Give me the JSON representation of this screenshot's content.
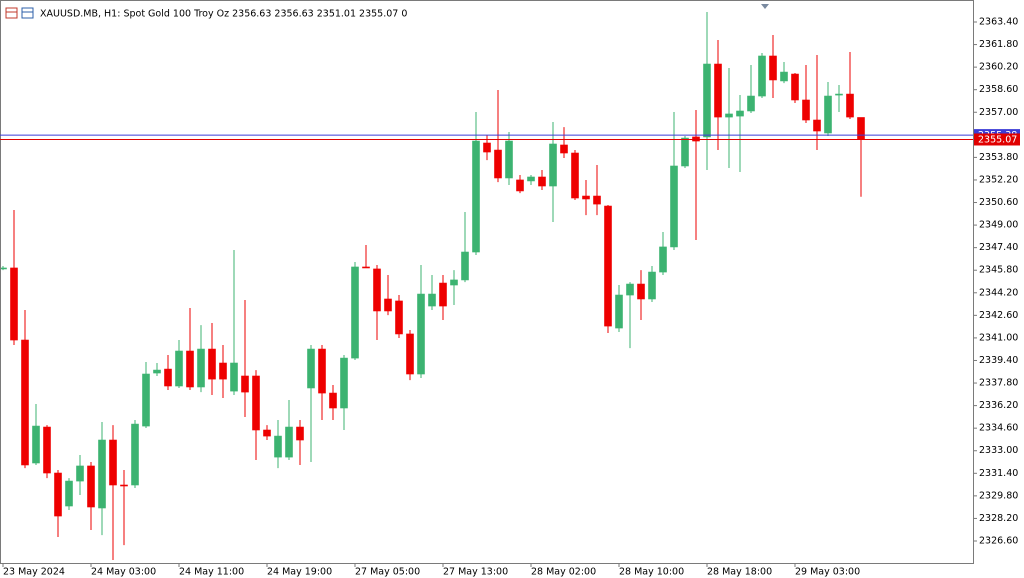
{
  "chart_data": {
    "type": "candlestick",
    "title": "XAUUSD.MB, H1:  Spot Gold 100 Troy Oz  2356.63 2356.63 2351.01 2355.07  0",
    "categories": [
      "23 May 2024",
      null,
      null,
      null,
      null,
      null,
      null,
      null,
      "24 May 03:00",
      null,
      null,
      null,
      null,
      null,
      null,
      null,
      "24 May 11:00",
      null,
      null,
      null,
      null,
      null,
      null,
      null,
      "24 May 19:00",
      null,
      null,
      null,
      null,
      null,
      null,
      null,
      "27 May 05:00",
      null,
      null,
      null,
      null,
      null,
      null,
      null,
      "27 May 13:00",
      null,
      null,
      null,
      null,
      null,
      null,
      null,
      "28 May 02:00",
      null,
      null,
      null,
      null,
      null,
      null,
      null,
      "28 May 10:00",
      null,
      null,
      null,
      null,
      null,
      null,
      null,
      "28 May 18:00",
      null,
      null,
      null,
      null,
      null,
      null,
      null,
      "29 May 03:00",
      null,
      null,
      null,
      null,
      null,
      null
    ],
    "open": [
      2345.96,
      2345.96,
      2340.85,
      2332.13,
      2334.68,
      2331.42,
      2329.08,
      2330.85,
      2331.92,
      2328.94,
      2333.76,
      2330.57,
      2330.57,
      2334.75,
      2338.51,
      2338.79,
      2337.59,
      2340.07,
      2337.52,
      2340.21,
      2339.22,
      2337.23,
      2338.3,
      2338.3,
      2334.47,
      2332.55,
      2332.55,
      2334.68,
      2337.45,
      2340.21,
      2337.09,
      2336.03,
      2339.57,
      2346.03,
      2345.89,
      2343.76,
      2343.62,
      2341.28,
      2338.44,
      2343.26,
      2344.89,
      2344.75,
      2345.11,
      2347.09,
      2354.82,
      2354.32,
      2352.34,
      2352.2,
      2352.13,
      2352.41,
      2351.77,
      2354.68,
      2354.11,
      2351.06,
      2351.06,
      2350.35,
      2341.7,
      2344.04,
      2344.82,
      2343.76,
      2345.67,
      2347.45,
      2353.19,
      2355.25,
      2355.25,
      2360.42,
      2356.66,
      2356.73,
      2357.09,
      2358.15,
      2360.99,
      2359.22,
      2359.71,
      2357.87,
      2356.45,
      2355.53,
      2358.22,
      2358.29,
      2356.63
    ],
    "high": [
      2346.1,
      2350.07,
      2342.98,
      2336.31,
      2334.82,
      2331.63,
      2331.06,
      2332.7,
      2332.2,
      2335.04,
      2334.82,
      2331.63,
      2335.18,
      2339.29,
      2339.22,
      2339.79,
      2340.85,
      2343.12,
      2341.91,
      2342.06,
      2340.5,
      2347.23,
      2343.69,
      2338.72,
      2334.82,
      2335.18,
      2336.6,
      2335.18,
      2340.5,
      2340.5,
      2337.66,
      2339.79,
      2346.38,
      2347.59,
      2346.17,
      2345.46,
      2344.04,
      2341.56,
      2346.17,
      2345.46,
      2345.46,
      2345.81,
      2349.93,
      2357.02,
      2355.39,
      2358.58,
      2355.6,
      2352.55,
      2352.55,
      2352.91,
      2356.31,
      2355.95,
      2354.32,
      2352.2,
      2353.26,
      2350.42,
      2344.75,
      2344.96,
      2345.81,
      2346.1,
      2348.51,
      2357.02,
      2355.32,
      2357.16,
      2364.11,
      2362.12,
      2360.14,
      2358.22,
      2360.35,
      2361.2,
      2362.48,
      2360.56,
      2359.78,
      2360.35,
      2361.06,
      2359.15,
      2358.93,
      2361.27,
      2356.63
    ],
    "low": [
      2345.81,
      2340.5,
      2331.77,
      2331.99,
      2331.06,
      2326.88,
      2328.8,
      2329.86,
      2327.38,
      2327.02,
      2325.25,
      2326.31,
      2330.36,
      2334.61,
      2338.3,
      2337.31,
      2337.45,
      2337.31,
      2337.16,
      2336.95,
      2336.74,
      2336.95,
      2335.39,
      2332.34,
      2333.76,
      2331.77,
      2332.34,
      2331.99,
      2332.2,
      2335.18,
      2335.18,
      2334.47,
      2339.43,
      2345.96,
      2340.85,
      2342.62,
      2340.99,
      2338.01,
      2338.16,
      2342.98,
      2342.27,
      2343.33,
      2344.96,
      2346.88,
      2353.61,
      2352.05,
      2351.84,
      2351.27,
      2351.84,
      2351.49,
      2349.22,
      2353.76,
      2350.78,
      2349.71,
      2349.71,
      2341.35,
      2341.42,
      2340.28,
      2342.27,
      2343.55,
      2345.46,
      2347.23,
      2353.05,
      2347.94,
      2352.91,
      2354.32,
      2353.05,
      2352.76,
      2356.95,
      2358.01,
      2358.01,
      2359.07,
      2357.66,
      2356.24,
      2354.32,
      2355.32,
      2357.02,
      2356.52,
      2351.01
    ],
    "close": [
      2345.96,
      2340.85,
      2331.99,
      2334.75,
      2331.42,
      2328.37,
      2330.85,
      2331.92,
      2329.01,
      2333.76,
      2330.57,
      2330.5,
      2334.89,
      2338.44,
      2338.72,
      2337.59,
      2340.07,
      2337.52,
      2340.21,
      2338.08,
      2338.08,
      2339.22,
      2337.16,
      2334.47,
      2334.04,
      2334.04,
      2334.68,
      2333.76,
      2340.21,
      2337.09,
      2336.03,
      2339.57,
      2346.03,
      2345.96,
      2342.91,
      2342.91,
      2341.28,
      2338.44,
      2344.11,
      2344.11,
      2343.26,
      2345.11,
      2347.09,
      2354.96,
      2354.18,
      2352.34,
      2354.96,
      2351.42,
      2352.41,
      2351.77,
      2354.75,
      2354.11,
      2350.92,
      2350.85,
      2350.49,
      2341.84,
      2344.04,
      2344.82,
      2343.76,
      2345.67,
      2347.45,
      2353.19,
      2355.17,
      2354.96,
      2360.42,
      2356.66,
      2356.88,
      2357.09,
      2358.15,
      2360.99,
      2359.29,
      2359.85,
      2357.87,
      2356.45,
      2355.67,
      2358.15,
      2358.29,
      2356.66,
      2355.07
    ],
    "up_color": "#3cb371",
    "down_color": "#ee0000",
    "ylim": [
      2325.04,
      2364.96
    ],
    "yticks": [
      {
        "value": 2326.6,
        "label": "2326.60"
      },
      {
        "value": 2328.2,
        "label": "2328.20"
      },
      {
        "value": 2329.8,
        "label": "2329.80"
      },
      {
        "value": 2331.4,
        "label": "2331.40"
      },
      {
        "value": 2333.0,
        "label": "2333.00"
      },
      {
        "value": 2334.6,
        "label": "2334.60"
      },
      {
        "value": 2336.2,
        "label": "2336.20"
      },
      {
        "value": 2337.8,
        "label": "2337.80"
      },
      {
        "value": 2339.4,
        "label": "2339.40"
      },
      {
        "value": 2341.0,
        "label": "2341.00"
      },
      {
        "value": 2342.6,
        "label": "2342.60"
      },
      {
        "value": 2344.2,
        "label": "2344.20"
      },
      {
        "value": 2345.8,
        "label": "2345.80"
      },
      {
        "value": 2347.4,
        "label": "2347.40"
      },
      {
        "value": 2349.0,
        "label": "2349.00"
      },
      {
        "value": 2350.6,
        "label": "2350.60"
      },
      {
        "value": 2352.2,
        "label": "2352.20"
      },
      {
        "value": 2353.8,
        "label": "2353.80"
      },
      {
        "value": 2357.0,
        "label": "2357.00"
      },
      {
        "value": 2358.6,
        "label": "2358.60"
      },
      {
        "value": 2360.2,
        "label": "2360.20"
      },
      {
        "value": 2361.8,
        "label": "2361.80"
      },
      {
        "value": 2363.4,
        "label": "2363.40"
      }
    ],
    "ask": 2355.38,
    "ask_color": "#3b3bd6",
    "bid": 2355.07,
    "bid_color": "#e00000",
    "grid": false
  }
}
